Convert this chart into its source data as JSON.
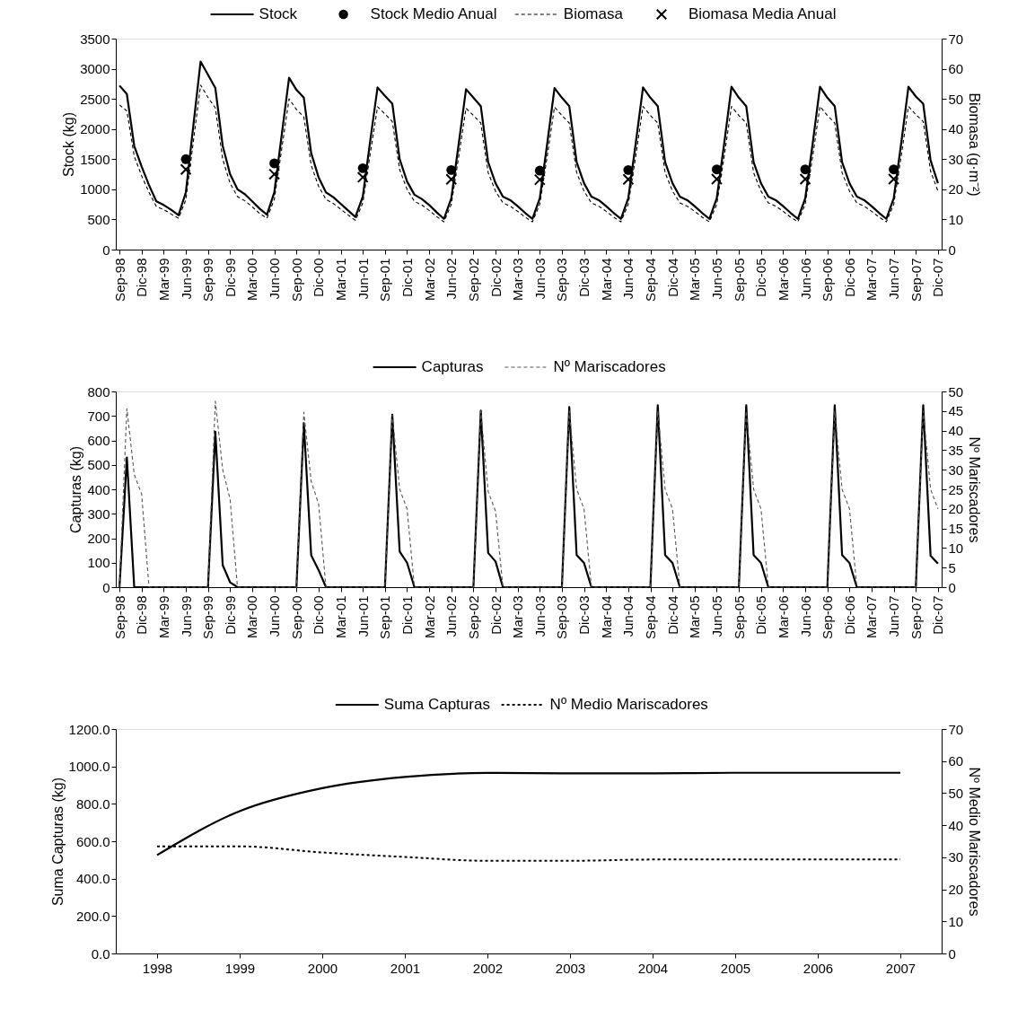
{
  "chart_data": [
    {
      "type": "line",
      "ylabel": "Stock (kg)",
      "y2label": "Biomasa (g·m⁻²)",
      "legend": "top",
      "categories": [
        "Sep-98",
        null,
        null,
        "Dic-98",
        null,
        null,
        "Mar-99",
        null,
        null,
        "Jun-99",
        null,
        null,
        "Sep-99",
        null,
        null,
        "Dic-99",
        null,
        null,
        "Mar-00",
        null,
        null,
        "Jun-00",
        null,
        null,
        "Sep-00",
        null,
        null,
        "Dic-00",
        null,
        null,
        "Mar-01",
        null,
        null,
        "Jun-01",
        null,
        null,
        "Sep-01",
        null,
        null,
        "Dic-01",
        null,
        null,
        "Mar-02",
        null,
        null,
        "Jun-02",
        null,
        null,
        "Sep-02",
        null,
        null,
        "Dic-02",
        null,
        null,
        "Mar-03",
        null,
        null,
        "Jun-03",
        null,
        null,
        "Sep-03",
        null,
        null,
        "Dic-03",
        null,
        null,
        "Mar-04",
        null,
        null,
        "Jun-04",
        null,
        null,
        "Sep-04",
        null,
        null,
        "Dic-04",
        null,
        null,
        "Mar-05",
        null,
        null,
        "Jun-05",
        null,
        null,
        "Sep-05",
        null,
        null,
        "Dic-05",
        null,
        null,
        "Mar-06",
        null,
        null,
        "Jun-06",
        null,
        null,
        "Sep-06",
        null,
        null,
        "Dic-06",
        null,
        null,
        "Mar-07",
        null,
        null,
        "Jun-07",
        null,
        null,
        "Sep-07",
        null,
        null,
        "Dic-07"
      ],
      "ylim": [
        0,
        3500
      ],
      "yticks": [
        0,
        500,
        1000,
        1500,
        2000,
        2500,
        3000,
        3500
      ],
      "y2lim": [
        0,
        70
      ],
      "y2ticks": [
        0,
        10,
        20,
        30,
        40,
        50,
        60,
        70
      ],
      "series": [
        {
          "name": "Stock",
          "line_style": "solid",
          "color": "#000000",
          "values": [
            2720,
            2580,
            1720,
            1380,
            1070,
            800,
            740,
            660,
            570,
            950,
            2040,
            3120,
            2900,
            2680,
            1720,
            1250,
            1000,
            920,
            800,
            680,
            580,
            950,
            1900,
            2850,
            2650,
            2520,
            1600,
            1200,
            950,
            870,
            760,
            650,
            540,
            880,
            1800,
            2690,
            2550,
            2420,
            1500,
            1130,
            910,
            840,
            740,
            620,
            510,
            850,
            1750,
            2660,
            2520,
            2380,
            1450,
            1100,
            880,
            820,
            720,
            610,
            510,
            850,
            1750,
            2680,
            2520,
            2380,
            1450,
            1100,
            880,
            820,
            720,
            610,
            510,
            850,
            1750,
            2690,
            2520,
            2380,
            1450,
            1100,
            880,
            820,
            720,
            610,
            510,
            850,
            1750,
            2700,
            2520,
            2380,
            1450,
            1100,
            880,
            820,
            720,
            610,
            510,
            850,
            1750,
            2700,
            2520,
            2380,
            1450,
            1100,
            880,
            820,
            720,
            610,
            510,
            850,
            1750,
            2700,
            2540,
            2420,
            1480,
            1100
          ]
        },
        {
          "name": "Stock Medio Anual",
          "type": "scatter",
          "marker": "circle",
          "color": "#000000",
          "values": [
            null,
            null,
            null,
            null,
            null,
            null,
            null,
            null,
            null,
            1500,
            null,
            null,
            null,
            null,
            null,
            null,
            null,
            null,
            null,
            null,
            null,
            1430,
            null,
            null,
            null,
            null,
            null,
            null,
            null,
            null,
            null,
            null,
            null,
            1350,
            null,
            null,
            null,
            null,
            null,
            null,
            null,
            null,
            null,
            null,
            null,
            1320,
            null,
            null,
            null,
            null,
            null,
            null,
            null,
            null,
            null,
            null,
            null,
            1310,
            null,
            null,
            null,
            null,
            null,
            null,
            null,
            null,
            null,
            null,
            null,
            1320,
            null,
            null,
            null,
            null,
            null,
            null,
            null,
            null,
            null,
            null,
            null,
            1330,
            null,
            null,
            null,
            null,
            null,
            null,
            null,
            null,
            null,
            null,
            null,
            1330,
            null,
            null,
            null,
            null,
            null,
            null,
            null,
            null,
            null,
            null,
            null,
            1330,
            null,
            null,
            null,
            null,
            null,
            null
          ]
        },
        {
          "name": "Biomasa",
          "axis": "y2",
          "line_style": "dashed",
          "color": "#000000",
          "values": [
            48,
            46,
            31,
            24.5,
            19,
            14.3,
            13.3,
            11.8,
            10.4,
            16.5,
            35.5,
            54.6,
            50.5,
            47,
            30,
            22,
            17.6,
            16.2,
            14.2,
            12,
            10.4,
            16.7,
            33.4,
            50,
            46.5,
            44,
            28,
            21,
            16.7,
            15.3,
            13.4,
            11.5,
            9.7,
            15.5,
            31.7,
            47.4,
            45,
            42.5,
            26.5,
            20,
            16,
            14.8,
            13,
            11,
            9.2,
            15,
            30.8,
            46.9,
            44.5,
            42,
            25.5,
            19.4,
            15.5,
            14.4,
            12.7,
            10.8,
            9.2,
            15,
            30.8,
            47.3,
            44.5,
            42,
            25.5,
            19.4,
            15.5,
            14.4,
            12.7,
            10.8,
            9.2,
            15,
            30.8,
            47.5,
            44.5,
            42,
            25.5,
            19.4,
            15.5,
            14.4,
            12.7,
            10.8,
            9.2,
            15,
            30.8,
            47.5,
            44.5,
            42,
            25.5,
            19.4,
            15.5,
            14.4,
            12.7,
            10.8,
            9.2,
            15,
            30.8,
            47.5,
            44.5,
            42,
            25.5,
            19.4,
            15.5,
            14.4,
            12.7,
            10.8,
            9.2,
            15,
            30.8,
            47.5,
            44.8,
            42.5,
            26,
            19.4
          ]
        },
        {
          "name": "Biomasa Media Anual",
          "type": "scatter",
          "axis": "y2",
          "marker": "cross",
          "color": "#000000",
          "values": [
            null,
            null,
            null,
            null,
            null,
            null,
            null,
            null,
            null,
            26.6,
            null,
            null,
            null,
            null,
            null,
            null,
            null,
            null,
            null,
            null,
            null,
            25,
            null,
            null,
            null,
            null,
            null,
            null,
            null,
            null,
            null,
            null,
            null,
            24,
            null,
            null,
            null,
            null,
            null,
            null,
            null,
            null,
            null,
            null,
            null,
            23.3,
            null,
            null,
            null,
            null,
            null,
            null,
            null,
            null,
            null,
            null,
            null,
            23.2,
            null,
            null,
            null,
            null,
            null,
            null,
            null,
            null,
            null,
            null,
            null,
            23.3,
            null,
            null,
            null,
            null,
            null,
            null,
            null,
            null,
            null,
            null,
            null,
            23.4,
            null,
            null,
            null,
            null,
            null,
            null,
            null,
            null,
            null,
            null,
            null,
            23.4,
            null,
            null,
            null,
            null,
            null,
            null,
            null,
            null,
            null,
            null,
            null,
            23.4,
            null,
            null,
            null,
            null,
            null,
            null
          ]
        }
      ]
    },
    {
      "type": "line",
      "ylabel": "Capturas (kg)",
      "y2label": "Nº Mariscadores",
      "legend": "top",
      "categories": [
        "Sep-98",
        null,
        null,
        "Dic-98",
        null,
        null,
        "Mar-99",
        null,
        null,
        "Jun-99",
        null,
        null,
        "Sep-99",
        null,
        null,
        "Dic-99",
        null,
        null,
        "Mar-00",
        null,
        null,
        "Jun-00",
        null,
        null,
        "Sep-00",
        null,
        null,
        "Dic-00",
        null,
        null,
        "Mar-01",
        null,
        null,
        "Jun-01",
        null,
        null,
        "Sep-01",
        null,
        null,
        "Dic-01",
        null,
        null,
        "Mar-02",
        null,
        null,
        "Jun-02",
        null,
        null,
        "Sep-02",
        null,
        null,
        "Dic-02",
        null,
        null,
        "Mar-03",
        null,
        null,
        "Jun-03",
        null,
        null,
        "Sep-03",
        null,
        null,
        "Dic-03",
        null,
        null,
        "Mar-04",
        null,
        null,
        "Jun-04",
        null,
        null,
        "Sep-04",
        null,
        null,
        "Dic-04",
        null,
        null,
        "Mar-05",
        null,
        null,
        "Jun-05",
        null,
        null,
        "Sep-05",
        null,
        null,
        "Dic-05",
        null,
        null,
        "Mar-06",
        null,
        null,
        "Jun-06",
        null,
        null,
        "Sep-06",
        null,
        null,
        "Dic-06",
        null,
        null,
        "Mar-07",
        null,
        null,
        "Jun-07",
        null,
        null,
        "Sep-07",
        null,
        null,
        "Dic-07"
      ],
      "ylim": [
        0,
        800
      ],
      "yticks": [
        0,
        100,
        200,
        300,
        400,
        500,
        600,
        700,
        800
      ],
      "y2lim": [
        0,
        50
      ],
      "y2ticks": [
        0,
        5,
        10,
        15,
        20,
        25,
        30,
        35,
        40,
        45,
        50
      ],
      "series": [
        {
          "name": "Capturas",
          "line_style": "solid",
          "color": "#000000",
          "values": [
            0,
            530,
            0,
            0,
            0,
            0,
            0,
            0,
            0,
            0,
            0,
            0,
            0,
            635,
            90,
            20,
            0,
            0,
            0,
            0,
            0,
            0,
            0,
            0,
            0,
            670,
            130,
            70,
            0,
            0,
            0,
            0,
            0,
            0,
            0,
            0,
            0,
            705,
            145,
            100,
            0,
            0,
            0,
            0,
            0,
            0,
            0,
            0,
            0,
            722,
            140,
            105,
            0,
            0,
            0,
            0,
            0,
            0,
            0,
            0,
            0,
            736,
            131,
            99,
            0,
            0,
            0,
            0,
            0,
            0,
            0,
            0,
            0,
            744,
            131,
            99,
            0,
            0,
            0,
            0,
            0,
            0,
            0,
            0,
            0,
            744,
            131,
            99,
            0,
            0,
            0,
            0,
            0,
            0,
            0,
            0,
            0,
            744,
            131,
            99,
            0,
            0,
            0,
            0,
            0,
            0,
            0,
            0,
            0,
            744,
            128,
            96
          ]
        },
        {
          "name": "Nº Mariscadores",
          "axis": "y2",
          "line_style": "dashed",
          "color": "#555555",
          "values": [
            0,
            45.6,
            28.8,
            23.8,
            0,
            0,
            0,
            0,
            0,
            0,
            0,
            0,
            0,
            47.5,
            30,
            22.5,
            0,
            0,
            0,
            0,
            0,
            0,
            0,
            0,
            0,
            44.7,
            27,
            21.3,
            0,
            0,
            0,
            0,
            0,
            0,
            0,
            0,
            0,
            44,
            25,
            20,
            0,
            0,
            0,
            0,
            0,
            0,
            0,
            0,
            0,
            45,
            24.4,
            19.4,
            0,
            0,
            0,
            0,
            0,
            0,
            0,
            0,
            0,
            45,
            25,
            20,
            0,
            0,
            0,
            0,
            0,
            0,
            0,
            0,
            0,
            45,
            25,
            20,
            0,
            0,
            0,
            0,
            0,
            0,
            0,
            0,
            0,
            45,
            25,
            20,
            0,
            0,
            0,
            0,
            0,
            0,
            0,
            0,
            0,
            45,
            25,
            20,
            0,
            0,
            0,
            0,
            0,
            0,
            0,
            0,
            0,
            45,
            25,
            20
          ]
        }
      ]
    },
    {
      "type": "line",
      "ylabel": "Suma Capturas (kg)",
      "y2label": "Nº  Medio Mariscadores",
      "legend": "top",
      "categories": [
        "1998",
        "1999",
        "2000",
        "2001",
        "2002",
        "2003",
        "2004",
        "2005",
        "2006",
        "2007"
      ],
      "ylim": [
        0,
        1200
      ],
      "yticks": [
        {
          "value": 0,
          "label": "0.0"
        },
        {
          "value": 200,
          "label": "200.0"
        },
        {
          "value": 400,
          "label": "400.0"
        },
        {
          "value": 600,
          "label": "600.0"
        },
        {
          "value": 800,
          "label": "800.0"
        },
        {
          "value": 1000,
          "label": "1000.0"
        },
        {
          "value": 1200,
          "label": "1200.0"
        }
      ],
      "y2lim": [
        0,
        70
      ],
      "y2ticks": [
        0,
        10,
        20,
        30,
        40,
        50,
        60,
        70
      ],
      "series": [
        {
          "name": "Suma Capturas",
          "line_style": "solid",
          "color": "#000000",
          "values": [
            526,
            761,
            884,
            944,
            965,
            963,
            963,
            966,
            966,
            966
          ]
        },
        {
          "name": "Nº Medio Mariscadores",
          "axis": "y2",
          "line_style": "dotted",
          "color": "#000000",
          "values": [
            33.4,
            33.4,
            31.5,
            30.1,
            28.9,
            28.9,
            29.3,
            29.3,
            29.3,
            29.3
          ]
        }
      ]
    }
  ]
}
